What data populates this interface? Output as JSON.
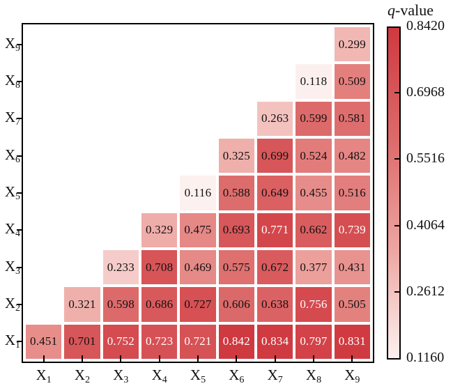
{
  "chart_data": {
    "type": "heatmap",
    "title": "",
    "description": "Lower-triangular heatmap of q-values between factors X1..X9",
    "colorbar": {
      "title_italic": "q",
      "title_rest": "-value",
      "tick_labels": [
        "0.8420",
        "0.6968",
        "0.5516",
        "0.4064",
        "0.2612",
        "0.1160"
      ],
      "vmin": 0.116,
      "vmax": 0.842,
      "legend_position": "right"
    },
    "colors": {
      "colormap_stops": [
        [
          0.0,
          "#fcf1ef"
        ],
        [
          0.33,
          "#eda5a1"
        ],
        [
          0.66,
          "#dd6b6b"
        ],
        [
          1.0,
          "#cf3940"
        ]
      ],
      "axis": "#000000",
      "cell_text_dark": "#111111",
      "cell_text_light": "#ffffff",
      "cell_gap": "#ffffff"
    },
    "x_categories": [
      {
        "base": "X",
        "sub": "1"
      },
      {
        "base": "X",
        "sub": "2"
      },
      {
        "base": "X",
        "sub": "3"
      },
      {
        "base": "X",
        "sub": "4"
      },
      {
        "base": "X",
        "sub": "5"
      },
      {
        "base": "X",
        "sub": "6"
      },
      {
        "base": "X",
        "sub": "7"
      },
      {
        "base": "X",
        "sub": "8"
      },
      {
        "base": "X",
        "sub": "9"
      }
    ],
    "rows": [
      {
        "label": {
          "base": "X",
          "sub": "9"
        },
        "values": [
          null,
          null,
          null,
          null,
          null,
          null,
          null,
          null,
          0.299
        ],
        "white_cols": []
      },
      {
        "label": {
          "base": "X",
          "sub": "8"
        },
        "values": [
          null,
          null,
          null,
          null,
          null,
          null,
          null,
          0.118,
          0.509
        ],
        "white_cols": []
      },
      {
        "label": {
          "base": "X",
          "sub": "7"
        },
        "values": [
          null,
          null,
          null,
          null,
          null,
          null,
          0.263,
          0.599,
          0.581
        ],
        "white_cols": []
      },
      {
        "label": {
          "base": "X",
          "sub": "6"
        },
        "values": [
          null,
          null,
          null,
          null,
          null,
          0.325,
          0.699,
          0.524,
          0.482
        ],
        "white_cols": []
      },
      {
        "label": {
          "base": "X",
          "sub": "5"
        },
        "values": [
          null,
          null,
          null,
          null,
          0.116,
          0.588,
          0.649,
          0.455,
          0.516
        ],
        "white_cols": []
      },
      {
        "label": {
          "base": "X",
          "sub": "4"
        },
        "values": [
          null,
          null,
          null,
          0.329,
          0.475,
          0.693,
          0.771,
          0.662,
          0.739
        ],
        "white_cols": [
          6,
          8
        ]
      },
      {
        "label": {
          "base": "X",
          "sub": "3"
        },
        "values": [
          null,
          null,
          0.233,
          0.708,
          0.469,
          0.575,
          0.672,
          0.377,
          0.431
        ],
        "white_cols": []
      },
      {
        "label": {
          "base": "X",
          "sub": "2"
        },
        "values": [
          null,
          0.321,
          0.598,
          0.686,
          0.727,
          0.606,
          0.638,
          0.756,
          0.505
        ],
        "white_cols": [
          7
        ]
      },
      {
        "label": {
          "base": "X",
          "sub": "1"
        },
        "values": [
          0.451,
          0.701,
          0.752,
          0.723,
          0.721,
          0.842,
          0.834,
          0.797,
          0.831
        ],
        "white_cols": [
          2,
          3,
          4,
          5,
          6,
          7,
          8
        ]
      }
    ]
  }
}
